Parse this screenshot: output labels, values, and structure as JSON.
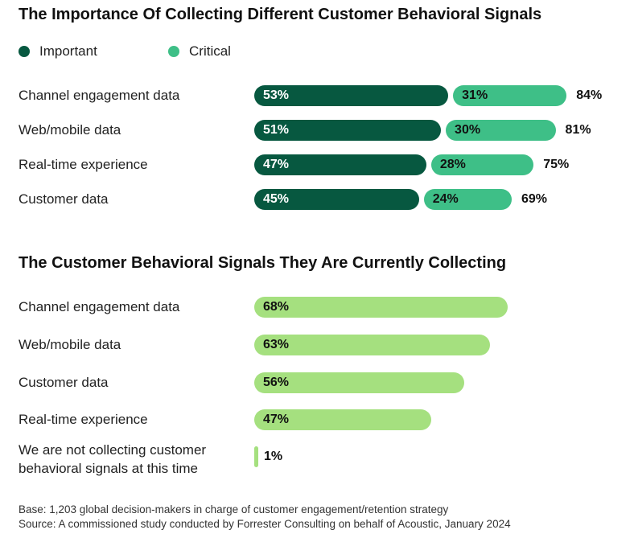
{
  "colors": {
    "important": "#075840",
    "critical": "#3ebf87",
    "collecting": "#a5e07f"
  },
  "chart_data": [
    {
      "type": "bar",
      "orientation": "horizontal",
      "stacked": true,
      "title": "The Importance Of Collecting Different Customer Behavioral Signals",
      "categories": [
        "Channel engagement data",
        "Web/mobile data",
        "Real-time experience",
        "Customer data"
      ],
      "series": [
        {
          "name": "Important",
          "values": [
            53,
            51,
            47,
            45
          ],
          "labels": [
            "53%",
            "51%",
            "47%",
            "45%"
          ]
        },
        {
          "name": "Critical",
          "values": [
            31,
            30,
            28,
            24
          ],
          "labels": [
            "31%",
            "30%",
            "28%",
            "24%"
          ]
        }
      ],
      "totals": [
        "84%",
        "81%",
        "75%",
        "69%"
      ],
      "legend_position": "top-left",
      "grid": false
    },
    {
      "type": "bar",
      "orientation": "horizontal",
      "title": "The Customer Behavioral Signals They Are Currently Collecting",
      "categories": [
        "Channel engagement data",
        "Web/mobile data",
        "Customer data",
        "Real-time experience",
        "We are not collecting customer behavioral signals at this time"
      ],
      "category_lines": [
        [
          "Channel engagement data"
        ],
        [
          "Web/mobile data"
        ],
        [
          "Customer data"
        ],
        [
          "Real-time experience"
        ],
        [
          "We are not collecting customer",
          "behavioral signals at this time"
        ]
      ],
      "values": [
        68,
        63,
        56,
        47,
        1
      ],
      "labels": [
        "68%",
        "63%",
        "56%",
        "47%",
        "1%"
      ],
      "grid": false
    }
  ],
  "footnotes": {
    "base": "Base: 1,203 global decision-makers in charge of customer engagement/retention strategy",
    "source": "Source: A commissioned study conducted by Forrester Consulting on behalf of Acoustic, January 2024"
  }
}
